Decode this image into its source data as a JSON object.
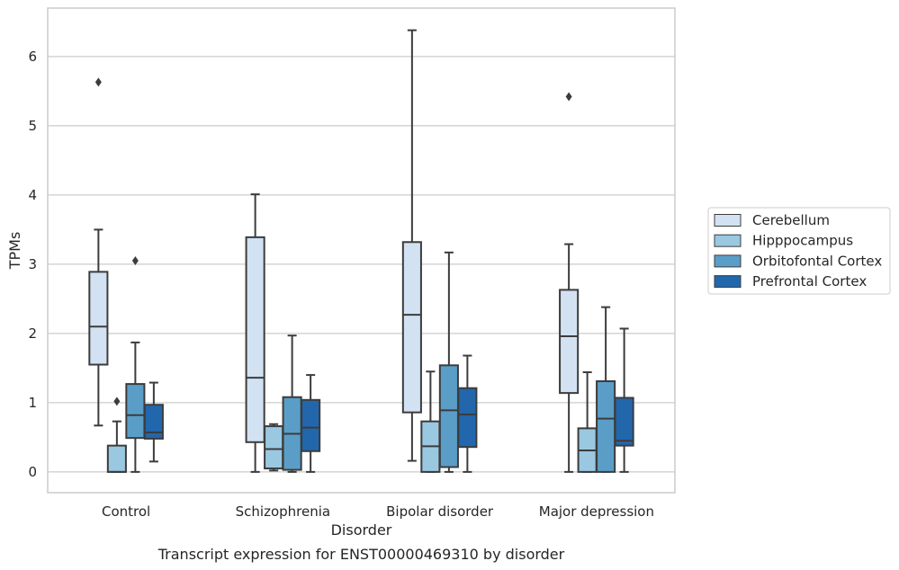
{
  "chart_data": {
    "type": "boxplot",
    "caption": "Transcript expression for ENST00000469310 by disorder",
    "xlabel": "Disorder",
    "ylabel": "TPMs",
    "ylim": [
      -0.3,
      6.7
    ],
    "yticks": [
      0,
      1,
      2,
      3,
      4,
      5,
      6
    ],
    "grid": "horizontal",
    "legend_position": "right",
    "categories": [
      "Control",
      "Schizophrenia",
      "Bipolar disorder",
      "Major depression"
    ],
    "series": [
      {
        "name": "Cerebellum",
        "color": "#d2e2f2",
        "boxes": [
          {
            "whisker_low": 0.67,
            "q1": 1.55,
            "median": 2.1,
            "q3": 2.89,
            "whisker_high": 3.5,
            "outliers": [
              5.63
            ]
          },
          {
            "whisker_low": 0.0,
            "q1": 0.43,
            "median": 1.36,
            "q3": 3.39,
            "whisker_high": 4.01,
            "outliers": []
          },
          {
            "whisker_low": 0.16,
            "q1": 0.86,
            "median": 2.27,
            "q3": 3.32,
            "whisker_high": 6.38,
            "outliers": []
          },
          {
            "whisker_low": 0.0,
            "q1": 1.14,
            "median": 1.96,
            "q3": 2.63,
            "whisker_high": 3.29,
            "outliers": [
              5.42
            ]
          }
        ]
      },
      {
        "name": "Hipppocampus",
        "color": "#9ac8e0",
        "boxes": [
          {
            "whisker_low": 0.0,
            "q1": 0.0,
            "median": 0.0,
            "q3": 0.38,
            "whisker_high": 0.73,
            "outliers": [
              1.02
            ]
          },
          {
            "whisker_low": 0.02,
            "q1": 0.05,
            "median": 0.33,
            "q3": 0.66,
            "whisker_high": 0.69,
            "outliers": []
          },
          {
            "whisker_low": 0.0,
            "q1": 0.0,
            "median": 0.37,
            "q3": 0.73,
            "whisker_high": 1.45,
            "outliers": []
          },
          {
            "whisker_low": 0.0,
            "q1": 0.0,
            "median": 0.31,
            "q3": 0.63,
            "whisker_high": 1.44,
            "outliers": []
          }
        ]
      },
      {
        "name": "Orbitofontal Cortex",
        "color": "#5a9ec8",
        "boxes": [
          {
            "whisker_low": 0.0,
            "q1": 0.49,
            "median": 0.82,
            "q3": 1.27,
            "whisker_high": 1.87,
            "outliers": [
              3.05
            ]
          },
          {
            "whisker_low": 0.0,
            "q1": 0.03,
            "median": 0.55,
            "q3": 1.08,
            "whisker_high": 1.97,
            "outliers": []
          },
          {
            "whisker_low": 0.0,
            "q1": 0.07,
            "median": 0.89,
            "q3": 1.54,
            "whisker_high": 3.17,
            "outliers": []
          },
          {
            "whisker_low": 0.0,
            "q1": 0.0,
            "median": 0.77,
            "q3": 1.31,
            "whisker_high": 2.38,
            "outliers": []
          }
        ]
      },
      {
        "name": "Prefrontal Cortex",
        "color": "#2267ac",
        "boxes": [
          {
            "whisker_low": 0.15,
            "q1": 0.48,
            "median": 0.57,
            "q3": 0.97,
            "whisker_high": 1.29,
            "outliers": []
          },
          {
            "whisker_low": 0.0,
            "q1": 0.3,
            "median": 0.64,
            "q3": 1.04,
            "whisker_high": 1.4,
            "outliers": []
          },
          {
            "whisker_low": 0.0,
            "q1": 0.36,
            "median": 0.83,
            "q3": 1.21,
            "whisker_high": 1.68,
            "outliers": []
          },
          {
            "whisker_low": 0.0,
            "q1": 0.38,
            "median": 0.45,
            "q3": 1.07,
            "whisker_high": 2.07,
            "outliers": []
          }
        ]
      }
    ]
  }
}
